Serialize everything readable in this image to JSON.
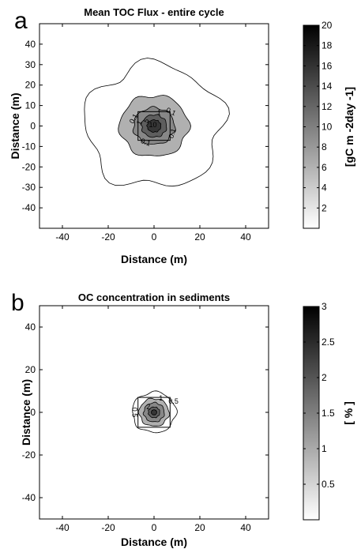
{
  "chart_data": [
    {
      "type": "contour",
      "panel_label": "a",
      "title": "Mean TOC Flux - entire cycle",
      "xlabel": "Distance (m)",
      "ylabel": "Distance (m)",
      "colorbar_label": "[gC m -2day -1]",
      "xlim": [
        -50,
        50
      ],
      "ylim": [
        -50,
        50
      ],
      "xticks": [
        -40,
        -20,
        0,
        20,
        40
      ],
      "yticks": [
        40,
        30,
        20,
        10,
        0,
        -10,
        -20,
        -30,
        -40
      ],
      "colorbar_range": [
        0,
        20
      ],
      "colorbar_ticks": [
        20,
        18,
        16,
        14,
        12,
        10,
        8,
        6,
        4,
        2
      ],
      "contour_levels": [
        0.1,
        1,
        5,
        10,
        15
      ],
      "contour_labels": [
        "0.1",
        "0.1",
        "0.1",
        "0.1",
        "1",
        "1",
        "5",
        "10"
      ],
      "center": [
        0,
        0
      ],
      "cage_square": {
        "x": [
          -7,
          7
        ],
        "y": [
          -7,
          7
        ]
      }
    },
    {
      "type": "contour",
      "panel_label": "b",
      "title": "OC concentration in sediments",
      "xlabel": "Distance (m)",
      "ylabel": "Distance (m)",
      "colorbar_label": "[ % ]",
      "xlim": [
        -50,
        50
      ],
      "ylim": [
        -50,
        50
      ],
      "xticks": [
        -40,
        -20,
        0,
        20,
        40
      ],
      "yticks": [
        40,
        20,
        0,
        -20,
        -40
      ],
      "colorbar_range": [
        0,
        3
      ],
      "colorbar_ticks": [
        3,
        2.5,
        2,
        1.5,
        1,
        0.5
      ],
      "contour_levels": [
        0.5,
        1,
        1.5,
        2,
        2.5
      ],
      "contour_labels": [
        "0.5",
        "0.5",
        "1",
        "2"
      ],
      "center": [
        0,
        0
      ],
      "cage_square": {
        "x": [
          -7,
          7
        ],
        "y": [
          -7,
          7
        ]
      }
    }
  ]
}
